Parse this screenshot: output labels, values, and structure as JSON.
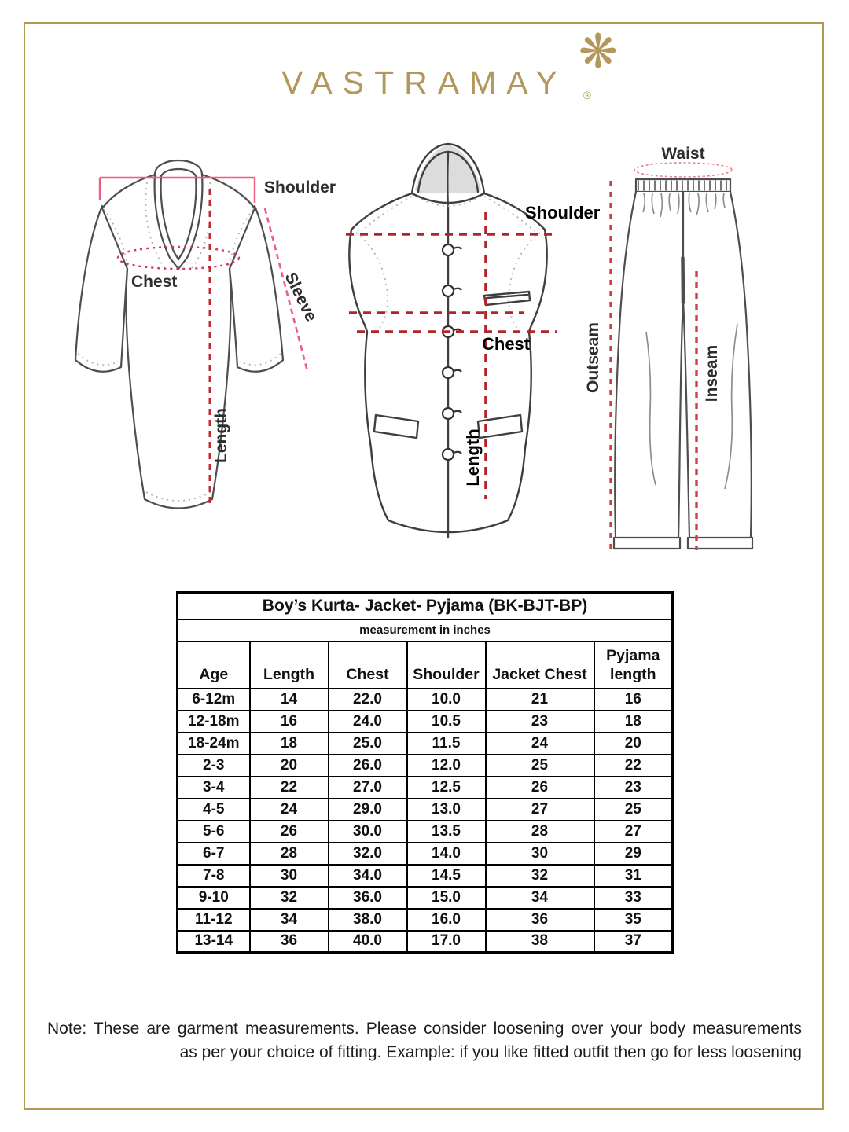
{
  "brand": {
    "logo_text": "VASTRAMAY",
    "registered_mark": "®",
    "ornament_icon": "floral-star-icon",
    "ornament_glyph": "❋",
    "logo_color": "#b3985c"
  },
  "diagrams": {
    "kurta": {
      "name": "kurta-measurement-diagram",
      "labels": {
        "shoulder": "Shoulder",
        "chest": "Chest",
        "sleeve": "Sleeve",
        "length": "Length"
      }
    },
    "jacket": {
      "name": "jacket-measurement-diagram",
      "labels": {
        "shoulder": "Shoulder",
        "chest": "Chest",
        "length": "Length"
      }
    },
    "pyjama": {
      "name": "pyjama-measurement-diagram",
      "labels": {
        "waist": "Waist",
        "outseam": "Outseam",
        "inseam": "Inseam"
      }
    }
  },
  "size_table": {
    "title": "Boy’s Kurta- Jacket- Pyjama (BK-BJT-BP)",
    "subtitle": "measurement in inches",
    "columns": [
      "Age",
      "Length",
      "Chest",
      "Shoulder",
      "Jacket Chest",
      "Pyjama length"
    ],
    "rows": [
      [
        "6-12m",
        "14",
        "22.0",
        "10.0",
        "21",
        "16"
      ],
      [
        "12-18m",
        "16",
        "24.0",
        "10.5",
        "23",
        "18"
      ],
      [
        "18-24m",
        "18",
        "25.0",
        "11.5",
        "24",
        "20"
      ],
      [
        "2-3",
        "20",
        "26.0",
        "12.0",
        "25",
        "22"
      ],
      [
        "3-4",
        "22",
        "27.0",
        "12.5",
        "26",
        "23"
      ],
      [
        "4-5",
        "24",
        "29.0",
        "13.0",
        "27",
        "25"
      ],
      [
        "5-6",
        "26",
        "30.0",
        "13.5",
        "28",
        "27"
      ],
      [
        "6-7",
        "28",
        "32.0",
        "14.0",
        "30",
        "29"
      ],
      [
        "7-8",
        "30",
        "34.0",
        "14.5",
        "32",
        "31"
      ],
      [
        "9-10",
        "32",
        "36.0",
        "15.0",
        "34",
        "33"
      ],
      [
        "11-12",
        "34",
        "38.0",
        "16.0",
        "36",
        "35"
      ],
      [
        "13-14",
        "36",
        "40.0",
        "17.0",
        "38",
        "37"
      ]
    ]
  },
  "note": {
    "line1": "Note: These are garment measurements. Please consider loosening over your body measurements",
    "line2": "as per your choice of fitting. Example: if you like fitted outfit then go for less loosening"
  },
  "colors": {
    "border_gold": "#b29a55",
    "logo_gold": "#b3985c",
    "measure_red": "#b92b2e",
    "measure_pink": "#ef5e7e",
    "sketch_gray": "#4e4e4e"
  }
}
